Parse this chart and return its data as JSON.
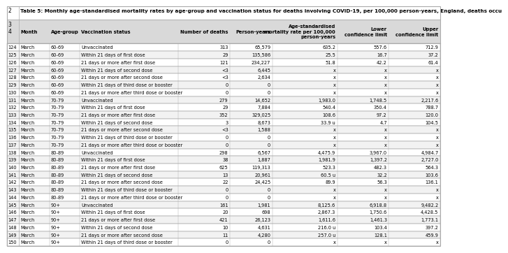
{
  "title": "Table 5: Monthly age-standardised mortality rates by age-group and vaccination status for deaths involving COVID-19, per 100,000 person-years, England, deaths occu",
  "col_headers": [
    "Month",
    "Age-group",
    "Vaccination status",
    "Number of deaths",
    "Person-years",
    "Age-standardised\nmortality rate per 100,000\nperson-years",
    "Lower\nconfidence limit",
    "Upper\nconfidence limit"
  ],
  "row_numbers": [
    124,
    125,
    126,
    127,
    128,
    129,
    130,
    131,
    132,
    133,
    134,
    135,
    136,
    137,
    138,
    139,
    140,
    141,
    142,
    143,
    144,
    145,
    146,
    147,
    148,
    149,
    150
  ],
  "rows": [
    [
      "March",
      "60-69",
      "Unvaccinated",
      "313",
      "65,579",
      "635.2",
      "557.6",
      "712.9"
    ],
    [
      "March",
      "60-69",
      "Within 21 days of first dose",
      "29",
      "135,586",
      "25.5",
      "16.7",
      "37.2"
    ],
    [
      "March",
      "60-69",
      "21 days or more after first dose",
      "121",
      "234,227",
      "51.8",
      "42.2",
      "61.4"
    ],
    [
      "March",
      "60-69",
      "Within 21 days of second dose",
      "<3",
      "6,445",
      "x",
      "x",
      "x"
    ],
    [
      "March",
      "60-69",
      "21 days or more after second dose",
      "<3",
      "2,634",
      "x",
      "x",
      "x"
    ],
    [
      "March",
      "60-69",
      "Within 21 days of third dose or booster",
      "0",
      "0",
      "x",
      "x",
      "x"
    ],
    [
      "March",
      "60-69",
      "21 days or more after third dose or booster",
      "0",
      "0",
      "x",
      "x",
      "x"
    ],
    [
      "March",
      "70-79",
      "Unvaccinated",
      "279",
      "14,652",
      "1,983.0",
      "1,748.5",
      "2,217.6"
    ],
    [
      "March",
      "70-79",
      "Within 21 days of first dose",
      "29",
      "7,884",
      "540.4",
      "350.4",
      "788.7"
    ],
    [
      "March",
      "70-79",
      "21 days or more after first dose",
      "352",
      "329,025",
      "108.6",
      "97.2",
      "120.0"
    ],
    [
      "March",
      "70-79",
      "Within 21 days of second dose",
      "3",
      "8,673",
      "33.9 u",
      "4.7",
      "104.5"
    ],
    [
      "March",
      "70-79",
      "21 days or more after second dose",
      "<3",
      "1,588",
      "x",
      "x",
      "x"
    ],
    [
      "March",
      "70-79",
      "Within 21 days of third dose or booster",
      "0",
      "0",
      "x",
      "x",
      "x"
    ],
    [
      "March",
      "70-79",
      "21 days or more after third dose or booster",
      "0",
      "0",
      "x",
      "x",
      "x"
    ],
    [
      "March",
      "80-89",
      "Unvaccinated",
      "298",
      "6,567",
      "4,475.9",
      "3,967.0",
      "4,984.7"
    ],
    [
      "March",
      "80-89",
      "Within 21 days of first dose",
      "38",
      "1,887",
      "1,981.9",
      "1,397.2",
      "2,727.0"
    ],
    [
      "March",
      "80-89",
      "21 days or more after first dose",
      "625",
      "119,313",
      "523.3",
      "482.3",
      "564.3"
    ],
    [
      "March",
      "80-89",
      "Within 21 days of second dose",
      "13",
      "20,961",
      "60.5 u",
      "32.2",
      "103.6"
    ],
    [
      "March",
      "80-89",
      "21 days or more after second dose",
      "22",
      "24,425",
      "89.9",
      "56.3",
      "136.1"
    ],
    [
      "March",
      "80-89",
      "Within 21 days of third dose or booster",
      "0",
      "0",
      "x",
      "x",
      "x"
    ],
    [
      "March",
      "80-89",
      "21 days or more after third dose or booster",
      "0",
      "0",
      "x",
      "x",
      "x"
    ],
    [
      "March",
      "90+",
      "Unvaccinated",
      "161",
      "1,981",
      "8,125.6",
      "6,918.8",
      "9,482.2"
    ],
    [
      "March",
      "90+",
      "Within 21 days of first dose",
      "20",
      "698",
      "2,867.3",
      "1,750.6",
      "4,428.5"
    ],
    [
      "March",
      "90+",
      "21 days or more after first dose",
      "421",
      "26,123",
      "1,611.6",
      "1,461.3",
      "1,773.1"
    ],
    [
      "March",
      "90+",
      "Within 21 days of second dose",
      "10",
      "4,631",
      "216.0 u",
      "103.4",
      "397.2"
    ],
    [
      "March",
      "90+",
      "21 days or more after second dose",
      "11",
      "4,280",
      "257.0 u",
      "128.1",
      "459.9"
    ],
    [
      "March",
      "90+",
      "Within 21 days of third dose or booster",
      "0",
      "0",
      "x",
      "x",
      "x"
    ]
  ],
  "col_alignments": [
    "left",
    "left",
    "left",
    "right",
    "right",
    "right",
    "right",
    "right"
  ],
  "header_bg": "#d9d9d9",
  "alt_row_bg": "#f2f2f2",
  "normal_row_bg": "#ffffff",
  "border_color": "#aaaaaa"
}
